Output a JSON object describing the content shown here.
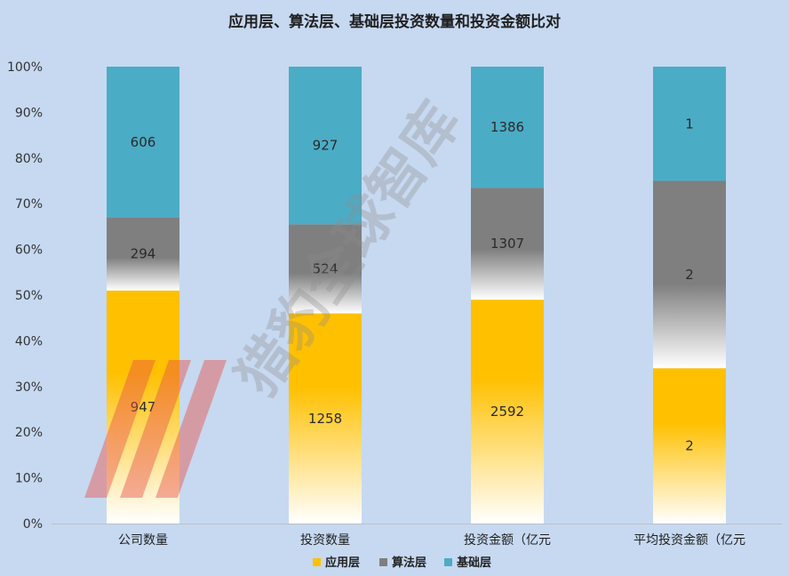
{
  "chart_data": {
    "type": "bar",
    "stacked": true,
    "normalized": true,
    "title": "应用层、算法层、基础层投资数量和投资金额比对",
    "categories": [
      "公司数量",
      "投资数量",
      "投资金额（亿元",
      "平均投资金额（亿元"
    ],
    "series": [
      {
        "name": "应用层",
        "color": "#ffc000",
        "values": [
          947,
          1258,
          2592,
          2
        ]
      },
      {
        "name": "算法层",
        "color": "#7f7f7f",
        "values": [
          294,
          524,
          1307,
          2
        ]
      },
      {
        "name": "基础层",
        "color": "#4bacc6",
        "values": [
          606,
          927,
          1386,
          1
        ]
      }
    ],
    "series_fractions": [
      [
        0.51,
        0.46,
        0.49,
        0.34
      ],
      [
        0.16,
        0.195,
        0.245,
        0.41
      ],
      [
        0.33,
        0.345,
        0.265,
        0.25
      ]
    ],
    "y_ticks": [
      "0%",
      "10%",
      "20%",
      "30%",
      "40%",
      "50%",
      "60%",
      "70%",
      "80%",
      "90%",
      "100%"
    ],
    "ylim": [
      0,
      100
    ],
    "grid": false,
    "legend": "bottom"
  },
  "watermark": {
    "text": "猎豹全球智库",
    "logo": "logo-stripes-icon"
  }
}
